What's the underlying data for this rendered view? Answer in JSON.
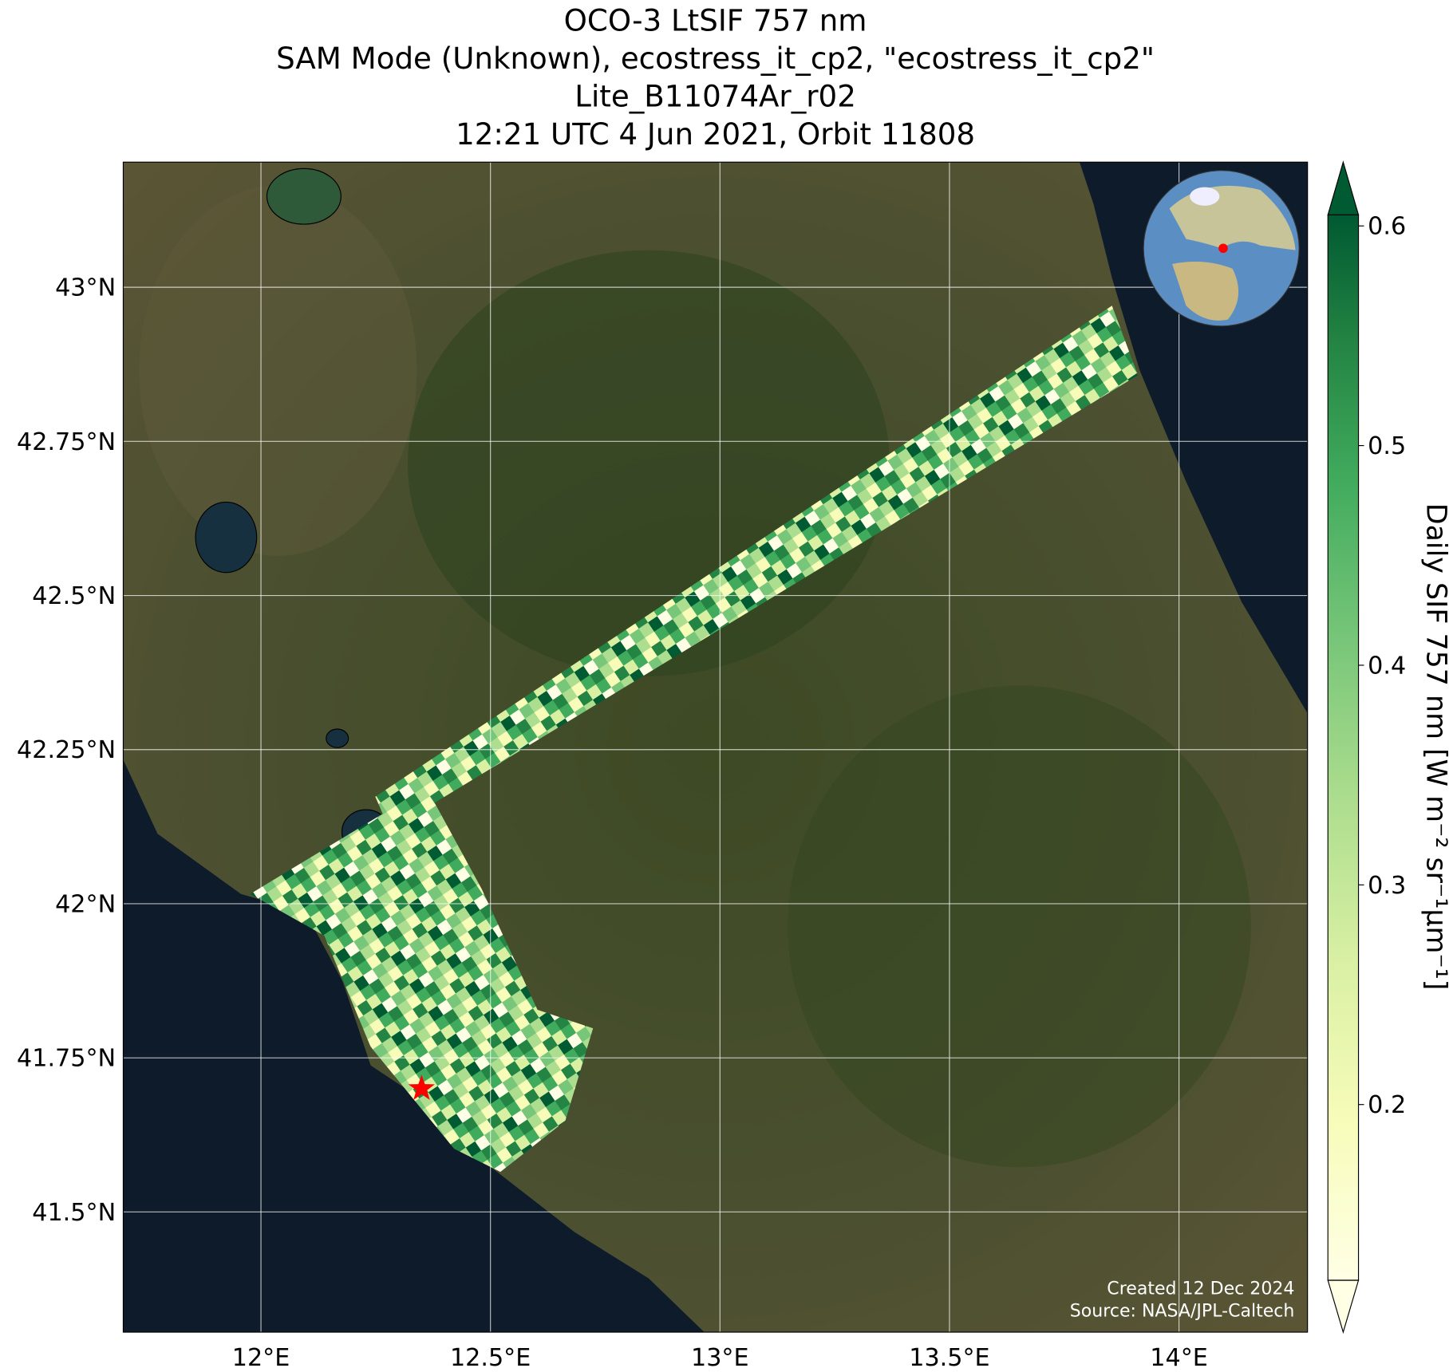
{
  "map": {
    "title_lines": [
      "OCO-3 LtSIF 757 nm",
      "SAM Mode (Unknown), ecostress_it_cp2, \"ecostress_it_cp2\"",
      "Lite_B11074Ar_r02",
      "12:21 UTC 4 Jun 2021, Orbit 11808"
    ],
    "xlim": [
      11.7,
      14.28
    ],
    "ylim": [
      41.305,
      43.203
    ],
    "xticks": [
      {
        "value": 12,
        "label": "12°E"
      },
      {
        "value": 12.5,
        "label": "12.5°E"
      },
      {
        "value": 13,
        "label": "13°E"
      },
      {
        "value": 13.5,
        "label": "13.5°E"
      },
      {
        "value": 14,
        "label": "14°E"
      }
    ],
    "yticks": [
      {
        "value": 41.5,
        "label": "41.5°N"
      },
      {
        "value": 41.75,
        "label": "41.75°N"
      },
      {
        "value": 42,
        "label": "42°N"
      },
      {
        "value": 42.25,
        "label": "42.25°N"
      },
      {
        "value": 42.5,
        "label": "42.5°N"
      },
      {
        "value": 42.75,
        "label": "42.75°N"
      },
      {
        "value": 43,
        "label": "43°N"
      }
    ],
    "grid": true,
    "site": {
      "lon": 12.35,
      "lat": 41.7
    },
    "colorbar": {
      "label": "Daily SIF 757 nm [W m⁻² sr⁻¹µm⁻¹]",
      "lim": [
        0.12,
        0.605
      ],
      "ticks": [
        0.2,
        0.3,
        0.4,
        0.5,
        0.6
      ]
    },
    "footer": [
      "Created 12 Dec 2024",
      "Source: NASA/JPL-Caltech"
    ]
  }
}
